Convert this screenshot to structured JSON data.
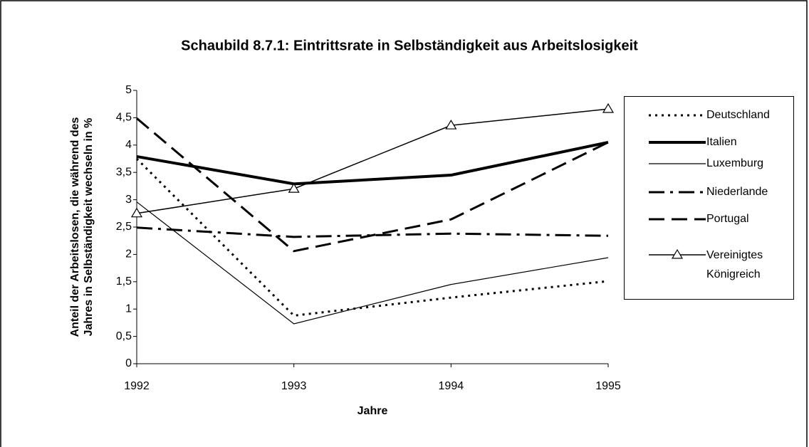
{
  "chart_data": {
    "type": "line",
    "title": "Schaubild 8.7.1: Eintrittsrate in Selbständigkeit aus Arbeitslosigkeit",
    "x_label": "Jahre",
    "y_label": "Anteil der Arbeitslosen, die während des Jahres in Selbständigkeit wechseln in %",
    "x": [
      1992,
      1993,
      1994,
      1995
    ],
    "xlim": [
      1992,
      1995
    ],
    "xticks": [
      1992,
      1993,
      1994,
      1995
    ],
    "ylim": [
      0,
      5
    ],
    "yticks": [
      0,
      {
        "value": 0.5,
        "label": "0,5"
      },
      1,
      {
        "value": 1.5,
        "label": "1,5"
      },
      2,
      {
        "value": 2.5,
        "label": "2,5"
      },
      3,
      {
        "value": 3.5,
        "label": "3,5"
      },
      4,
      {
        "value": 4.5,
        "label": "4,5"
      },
      5
    ],
    "grid": false,
    "legend": "right",
    "series": [
      {
        "name": "Deutschland",
        "color": "#000000",
        "width": 3,
        "dash": "3 6",
        "values": [
          3.75,
          0.88,
          1.21,
          1.51
        ]
      },
      {
        "name": "Italien",
        "color": "#000000",
        "width": 4,
        "dash": "none",
        "values": [
          3.79,
          3.29,
          3.45,
          4.05
        ]
      },
      {
        "name": "Luxemburg",
        "color": "#000000",
        "width": 1.2,
        "dash": "none",
        "values": [
          2.96,
          0.73,
          1.45,
          1.94
        ]
      },
      {
        "name": "Niederlande",
        "color": "#000000",
        "width": 3,
        "dash": "22 8 4 8",
        "values": [
          2.49,
          2.32,
          2.38,
          2.34
        ]
      },
      {
        "name": "Portugal",
        "color": "#000000",
        "width": 3,
        "dash": "22 10",
        "values": [
          4.49,
          2.06,
          2.64,
          4.05
        ]
      },
      {
        "name": "Vereinigtes Königreich",
        "color": "#000000",
        "width": 1.5,
        "dash": "none",
        "marker": "triangle",
        "values": [
          2.75,
          3.2,
          4.36,
          4.66
        ]
      }
    ]
  }
}
